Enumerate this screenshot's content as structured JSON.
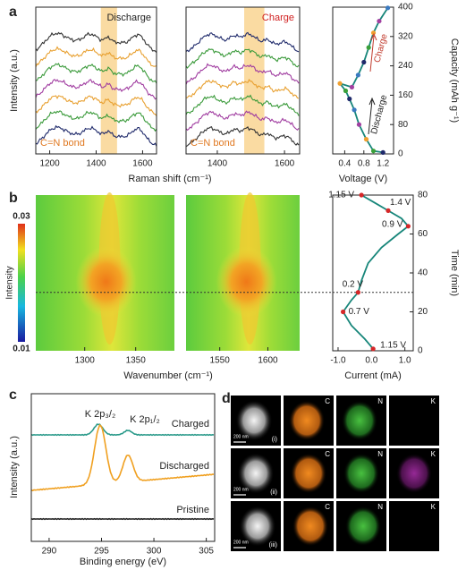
{
  "chart_data": [
    {
      "type": "spectra",
      "panel": "a",
      "title": "Discharge",
      "annotation": "C=N bond",
      "xlabel": "Raman shift (cm⁻¹)",
      "ylabel": "Intensity (a.u.)",
      "xlim": [
        1140,
        1660
      ],
      "xticks": [
        1200,
        1400,
        1600
      ],
      "highlight": [
        1420,
        1490
      ]
    },
    {
      "type": "spectra",
      "title": "Charge",
      "annotation": "C=N bond",
      "xlim": [
        1307,
        1645
      ],
      "xticks": [
        1400,
        1600
      ],
      "highlight": [
        1480,
        1540
      ]
    },
    {
      "type": "line",
      "xlabel": "Voltage (V)",
      "ylabel": "Capacity (mAh g⁻¹)",
      "xlim": [
        0.15,
        1.42
      ],
      "xticks": [
        0.4,
        0.8,
        1.2
      ],
      "ylim": [
        0,
        400
      ],
      "yticks": [
        0,
        80,
        160,
        240,
        320,
        400
      ],
      "annotations": [
        "Discharge",
        "Charge"
      ],
      "series": [
        {
          "color": "#17867a",
          "x": [
            1.2,
            1.0,
            0.85,
            0.7,
            0.6,
            0.5,
            0.42,
            0.3,
            0.55,
            0.68,
            0.8,
            0.9,
            1.0,
            1.12,
            1.3
          ],
          "values": [
            4,
            8,
            40,
            80,
            120,
            150,
            172,
            192,
            182,
            215,
            250,
            290,
            330,
            362,
            398
          ]
        }
      ],
      "marker_colors": [
        "#1f2a6b",
        "#3aa03a",
        "#f0a030",
        "#a040a0",
        "#3a7ac0"
      ]
    },
    {
      "type": "heatmap",
      "panel": "b",
      "xlabel": "Wavenumber (cm⁻¹)",
      "xlim": [
        1252,
        1388
      ],
      "xticks": [
        1300,
        1350
      ],
      "colorbar": {
        "label": "Intensity",
        "ticks": [
          0.01,
          0.03
        ]
      }
    },
    {
      "type": "heatmap",
      "xlim": [
        1515,
        1633
      ],
      "xticks": [
        1550,
        1600
      ]
    },
    {
      "type": "line",
      "xlabel": "Current (mA)",
      "ylabel": "Time (min)",
      "xlim": [
        -1.16,
        1.25
      ],
      "xticks": [
        {
          "value": -1,
          "label": "-1.0"
        },
        {
          "value": 0,
          "label": "0.0"
        },
        {
          "value": 1,
          "label": "1.0"
        }
      ],
      "ylim": [
        0,
        80
      ],
      "yticks": [
        0,
        20,
        40,
        60,
        80
      ],
      "series": [
        {
          "color": "#17867a",
          "x": [
            0.05,
            -0.2,
            -0.6,
            -0.85,
            -0.6,
            -0.4,
            -0.3,
            -0.1,
            0.3,
            0.8,
            1.1,
            0.9,
            0.5,
            0.1,
            -0.3
          ],
          "values": [
            1,
            6,
            13,
            20,
            26,
            30,
            36,
            45,
            53,
            60,
            64,
            68,
            72,
            76,
            80
          ]
        }
      ],
      "points": {
        "color": "#d62728",
        "x": [
          0.05,
          -0.85,
          -0.4,
          1.1,
          0.5,
          -0.3
        ],
        "values": [
          1,
          20,
          30,
          64,
          72,
          80
        ],
        "labels": [
          "1.15 V",
          "0.7 V",
          "0.2 V",
          "0.9 V",
          "1.4 V",
          "1.15 V"
        ]
      }
    },
    {
      "type": "xps",
      "panel": "c",
      "xlabel": "Binding energy (eV)",
      "ylabel": "Intensity (a.u.)",
      "xlim": [
        288.3,
        305.8
      ],
      "xticks": [
        290,
        295,
        300,
        305
      ],
      "curve_labels": [
        "Charged",
        "Discharged",
        "Pristine"
      ],
      "peak_labels": [
        "K 2p₃/₂",
        "K 2p₁/₂"
      ]
    }
  ],
  "figure_d": {
    "panel": "d",
    "channels": [
      "C",
      "N",
      "K"
    ],
    "scale_bar": "200 nm",
    "samples": [
      "(i)",
      "(ii)",
      "(iii)"
    ]
  }
}
